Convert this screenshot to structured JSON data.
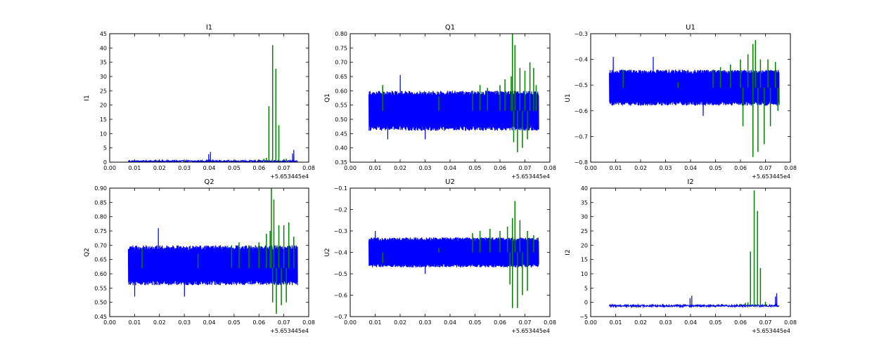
{
  "chart_data": [
    {
      "type": "line",
      "title": "I1",
      "ylabel": "I1",
      "xlim": [
        0.0,
        0.08
      ],
      "ylim": [
        0,
        45
      ],
      "x_ticks": [
        "0.00",
        "0.01",
        "0.02",
        "0.03",
        "0.04",
        "0.05",
        "0.06",
        "0.07",
        "0.08"
      ],
      "y_ticks": [
        "0",
        "5",
        "10",
        "15",
        "20",
        "25",
        "30",
        "35",
        "40",
        "45"
      ],
      "x_offset": "+5.653445e4",
      "series": [
        {
          "color": "#0000ff",
          "style": "noise",
          "x_range": [
            0.0075,
            0.0755
          ],
          "center": 0.3,
          "amplitude": 0.3,
          "spikes": [
            [
              0.0405,
              3.6
            ],
            [
              0.0398,
              2.8
            ],
            [
              0.074,
              4.3
            ],
            [
              0.0735,
              3.0
            ]
          ]
        },
        {
          "color": "#008000",
          "style": "spikes",
          "baseline": 0.3,
          "spikes": [
            [
              0.064,
              19.6
            ],
            [
              0.0655,
              41.0
            ],
            [
              0.0668,
              32.7
            ],
            [
              0.068,
              12.9
            ],
            [
              0.062,
              1.2
            ],
            [
              0.063,
              1.5
            ],
            [
              0.07,
              1.0
            ],
            [
              0.071,
              1.2
            ],
            [
              0.06,
              0.8
            ],
            [
              0.05,
              0.8
            ]
          ]
        }
      ]
    },
    {
      "type": "line",
      "title": "Q1",
      "ylabel": "Q1",
      "xlim": [
        0.0,
        0.08
      ],
      "ylim": [
        0.35,
        0.8
      ],
      "x_ticks": [
        "0.00",
        "0.01",
        "0.02",
        "0.03",
        "0.04",
        "0.05",
        "0.06",
        "0.07",
        "0.08"
      ],
      "y_ticks": [
        "0.35",
        "0.40",
        "0.45",
        "0.50",
        "0.55",
        "0.60",
        "0.65",
        "0.70",
        "0.75",
        "0.80"
      ],
      "x_offset": "+5.653445e4",
      "series": [
        {
          "color": "#0000ff",
          "style": "band",
          "x_range": [
            0.0075,
            0.0755
          ],
          "low": 0.46,
          "high": 0.6,
          "spikes": [
            [
              0.02,
              0.655
            ],
            [
              0.015,
              0.43
            ],
            [
              0.03,
              0.43
            ]
          ]
        },
        {
          "color": "#008000",
          "style": "spikes",
          "baseline": 0.53,
          "spikes": [
            [
              0.013,
              0.62
            ],
            [
              0.0355,
              0.58
            ],
            [
              0.049,
              0.6
            ],
            [
              0.052,
              0.62
            ],
            [
              0.055,
              0.61
            ],
            [
              0.06,
              0.62
            ],
            [
              0.062,
              0.64
            ],
            [
              0.0645,
              0.65
            ],
            [
              0.065,
              0.8
            ],
            [
              0.066,
              0.76
            ],
            [
              0.068,
              0.68
            ],
            [
              0.07,
              0.67
            ],
            [
              0.072,
              0.7
            ],
            [
              0.0735,
              0.68
            ],
            [
              0.0745,
              0.62
            ],
            [
              0.067,
              0.385
            ],
            [
              0.069,
              0.4
            ],
            [
              0.071,
              0.43
            ],
            [
              0.0655,
              0.42
            ]
          ]
        }
      ]
    },
    {
      "type": "line",
      "title": "U1",
      "ylabel": "U1",
      "xlim": [
        0.0,
        0.08
      ],
      "ylim": [
        -0.8,
        -0.3
      ],
      "x_ticks": [
        "0.00",
        "0.01",
        "0.02",
        "0.03",
        "0.04",
        "0.05",
        "0.06",
        "0.07",
        "0.08"
      ],
      "y_ticks": [
        "−0.8",
        "−0.7",
        "−0.6",
        "−0.5",
        "−0.4",
        "−0.3"
      ],
      "x_offset": "+5.653445e4",
      "series": [
        {
          "color": "#0000ff",
          "style": "band",
          "x_range": [
            0.0075,
            0.0755
          ],
          "low": -0.58,
          "high": -0.44,
          "spikes": [
            [
              0.009,
              -0.39
            ],
            [
              0.025,
              -0.39
            ],
            [
              0.045,
              -0.62
            ]
          ]
        },
        {
          "color": "#008000",
          "style": "spikes",
          "baseline": -0.51,
          "spikes": [
            [
              0.013,
              -0.44
            ],
            [
              0.035,
              -0.49
            ],
            [
              0.049,
              -0.44
            ],
            [
              0.052,
              -0.43
            ],
            [
              0.056,
              -0.42
            ],
            [
              0.06,
              -0.4
            ],
            [
              0.063,
              -0.38
            ],
            [
              0.065,
              -0.34
            ],
            [
              0.066,
              -0.325
            ],
            [
              0.068,
              -0.4
            ],
            [
              0.071,
              -0.4
            ],
            [
              0.074,
              -0.41
            ],
            [
              0.065,
              -0.78
            ],
            [
              0.067,
              -0.76
            ],
            [
              0.0695,
              -0.73
            ],
            [
              0.061,
              -0.66
            ],
            [
              0.072,
              -0.66
            ],
            [
              0.075,
              -0.6
            ]
          ]
        }
      ]
    },
    {
      "type": "line",
      "title": "Q2",
      "ylabel": "Q2",
      "xlim": [
        0.0,
        0.08
      ],
      "ylim": [
        0.45,
        0.9
      ],
      "x_ticks": [
        "0.00",
        "0.01",
        "0.02",
        "0.03",
        "0.04",
        "0.05",
        "0.06",
        "0.07",
        "0.08"
      ],
      "y_ticks": [
        "0.45",
        "0.50",
        "0.55",
        "0.60",
        "0.65",
        "0.70",
        "0.75",
        "0.80",
        "0.85",
        "0.90"
      ],
      "x_offset": "+5.653445e4",
      "series": [
        {
          "color": "#0000ff",
          "style": "band",
          "x_range": [
            0.0075,
            0.0755
          ],
          "low": 0.56,
          "high": 0.7,
          "spikes": [
            [
              0.0195,
              0.76
            ],
            [
              0.01,
              0.52
            ],
            [
              0.03,
              0.52
            ]
          ]
        },
        {
          "color": "#008000",
          "style": "spikes",
          "baseline": 0.62,
          "spikes": [
            [
              0.013,
              0.69
            ],
            [
              0.0355,
              0.67
            ],
            [
              0.049,
              0.7
            ],
            [
              0.052,
              0.71
            ],
            [
              0.056,
              0.7
            ],
            [
              0.06,
              0.71
            ],
            [
              0.063,
              0.74
            ],
            [
              0.0645,
              0.75
            ],
            [
              0.065,
              0.9
            ],
            [
              0.066,
              0.86
            ],
            [
              0.068,
              0.77
            ],
            [
              0.07,
              0.77
            ],
            [
              0.072,
              0.78
            ],
            [
              0.074,
              0.73
            ],
            [
              0.067,
              0.46
            ],
            [
              0.069,
              0.49
            ],
            [
              0.071,
              0.5
            ],
            [
              0.0655,
              0.5
            ]
          ]
        }
      ]
    },
    {
      "type": "line",
      "title": "U2",
      "ylabel": "U2",
      "xlim": [
        0.0,
        0.08
      ],
      "ylim": [
        -0.7,
        -0.1
      ],
      "x_ticks": [
        "0.00",
        "0.01",
        "0.02",
        "0.03",
        "0.04",
        "0.05",
        "0.06",
        "0.07",
        "0.08"
      ],
      "y_ticks": [
        "−0.7",
        "−0.6",
        "−0.5",
        "−0.4",
        "−0.3",
        "−0.2",
        "−0.1"
      ],
      "x_offset": "+5.653445e4",
      "series": [
        {
          "color": "#0000ff",
          "style": "band",
          "x_range": [
            0.0075,
            0.0755
          ],
          "low": -0.47,
          "high": -0.33,
          "spikes": [
            [
              0.01,
              -0.3
            ],
            [
              0.03,
              -0.5
            ]
          ]
        },
        {
          "color": "#008000",
          "style": "spikes",
          "baseline": -0.4,
          "spikes": [
            [
              0.013,
              -0.45
            ],
            [
              0.0355,
              -0.38
            ],
            [
              0.049,
              -0.31
            ],
            [
              0.052,
              -0.3
            ],
            [
              0.056,
              -0.29
            ],
            [
              0.06,
              -0.3
            ],
            [
              0.063,
              -0.28
            ],
            [
              0.065,
              -0.24
            ],
            [
              0.066,
              -0.16
            ],
            [
              0.068,
              -0.25
            ],
            [
              0.071,
              -0.3
            ],
            [
              0.0735,
              -0.32
            ],
            [
              0.065,
              -0.66
            ],
            [
              0.067,
              -0.66
            ],
            [
              0.069,
              -0.6
            ],
            [
              0.071,
              -0.58
            ],
            [
              0.064,
              -0.55
            ]
          ]
        }
      ]
    },
    {
      "type": "line",
      "title": "I2",
      "ylabel": "I2",
      "xlim": [
        0.0,
        0.08
      ],
      "ylim": [
        -5,
        40
      ],
      "x_ticks": [
        "0.00",
        "0.01",
        "0.02",
        "0.03",
        "0.04",
        "0.05",
        "0.06",
        "0.07",
        "0.08"
      ],
      "y_ticks": [
        "−5",
        "0",
        "5",
        "10",
        "15",
        "20",
        "25",
        "30",
        "35",
        "40"
      ],
      "x_offset": "+5.653445e4",
      "series": [
        {
          "color": "#0000ff",
          "style": "noise",
          "x_range": [
            0.0075,
            0.0755
          ],
          "center": -1.2,
          "amplitude": 0.35,
          "spikes": [
            [
              0.0405,
              2.3
            ],
            [
              0.0398,
              1.5
            ],
            [
              0.0745,
              3.2
            ],
            [
              0.074,
              2.0
            ]
          ]
        },
        {
          "color": "#008000",
          "style": "spikes",
          "baseline": -1.2,
          "spikes": [
            [
              0.064,
              17.8
            ],
            [
              0.0655,
              39.2
            ],
            [
              0.0668,
              32.0
            ],
            [
              0.068,
              12.0
            ],
            [
              0.062,
              -0.2
            ],
            [
              0.063,
              0.0
            ],
            [
              0.07,
              0.2
            ],
            [
              0.06,
              -0.5
            ]
          ]
        }
      ]
    }
  ]
}
